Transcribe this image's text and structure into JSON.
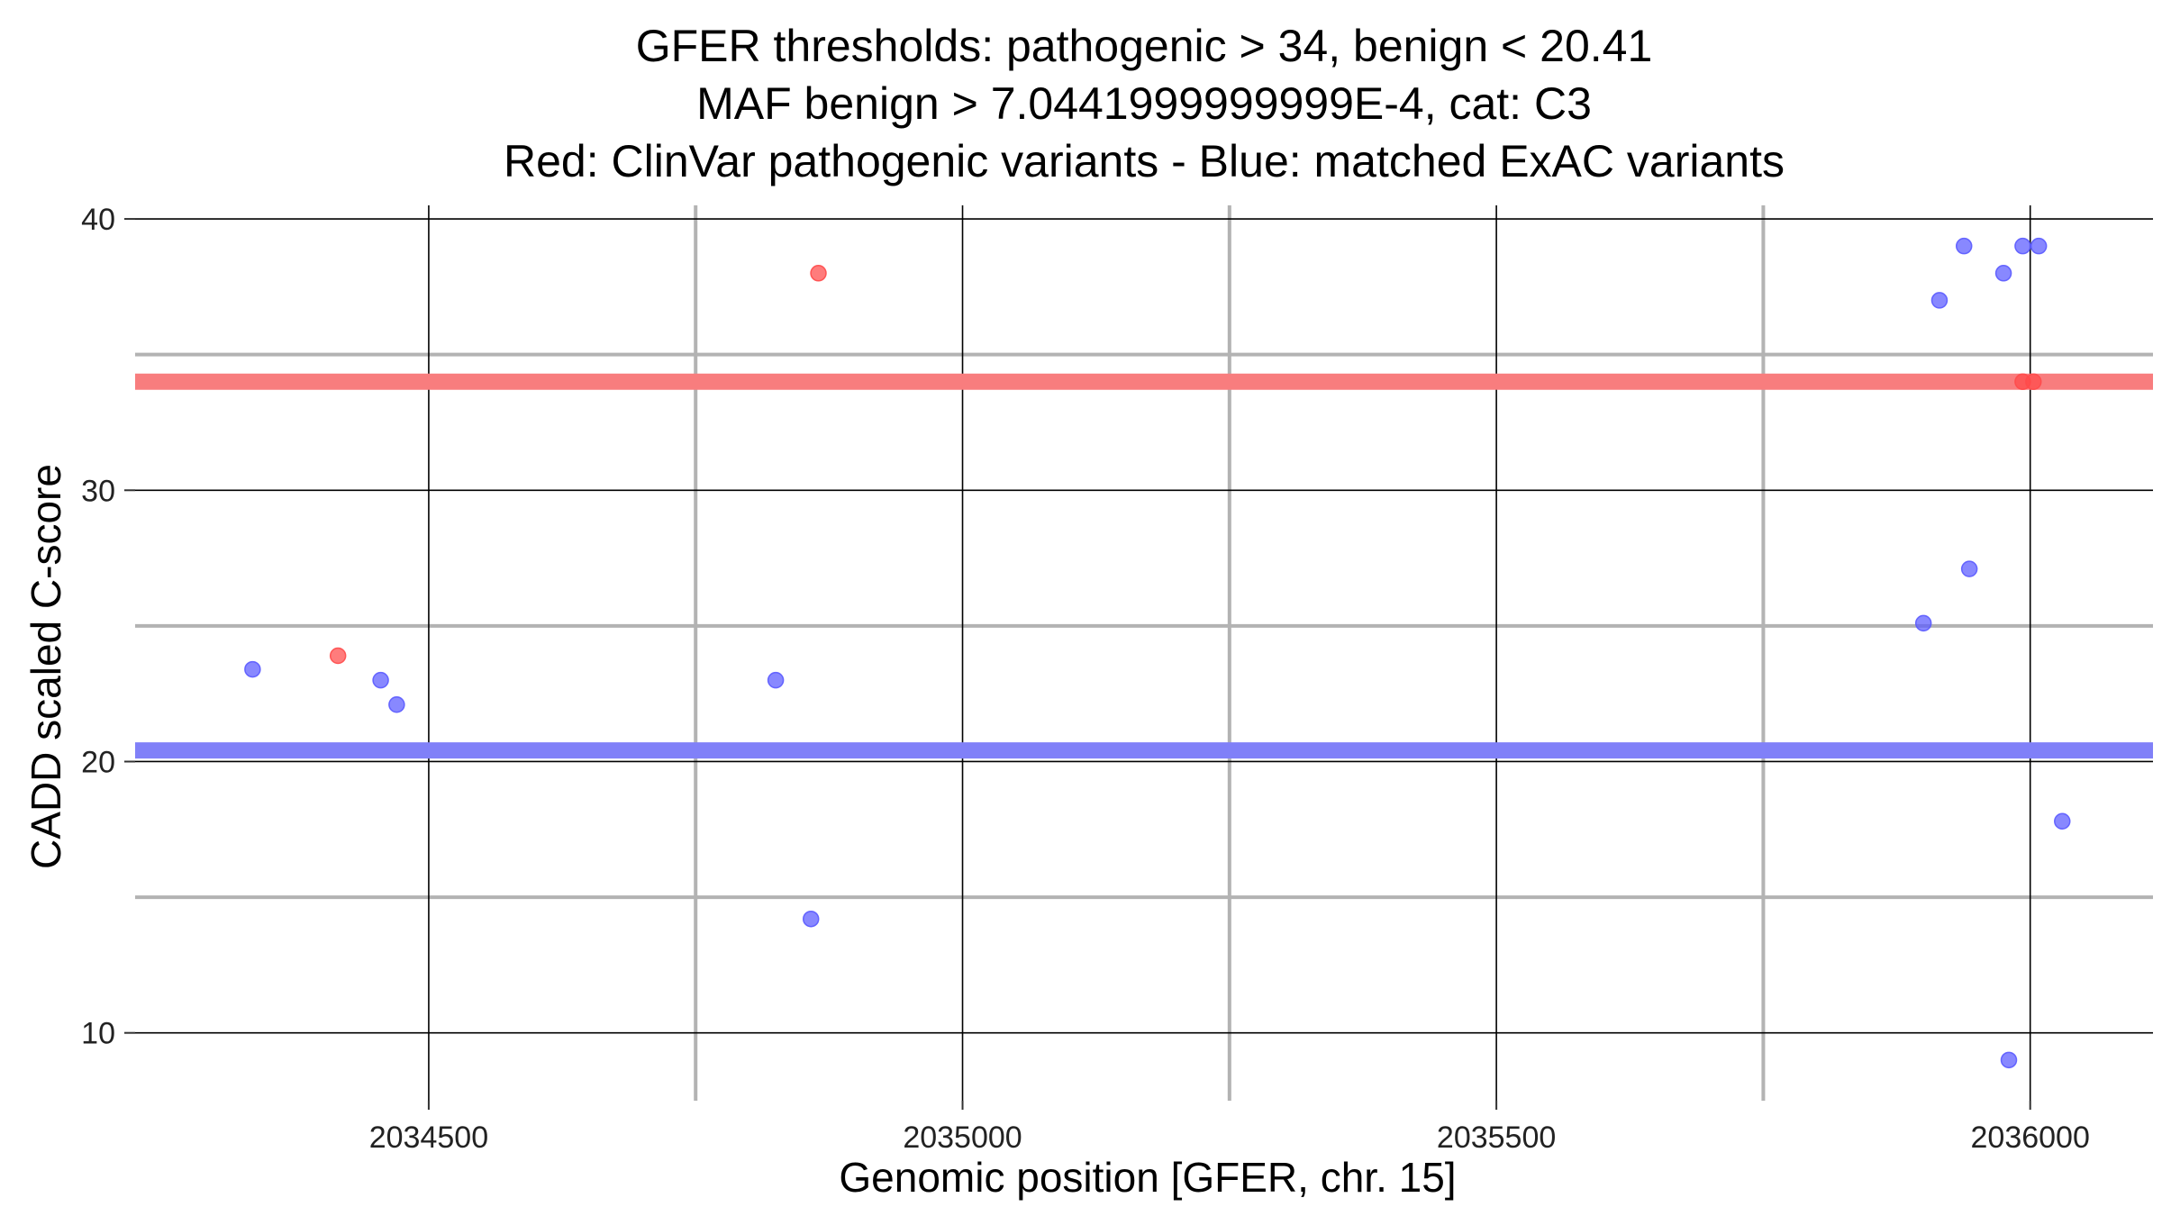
{
  "chart_data": {
    "type": "scatter",
    "title_lines": [
      "GFER thresholds: pathogenic > 34, benign < 20.41",
      "MAF benign > 7.0441999999999E-4, cat: C3",
      "Red: ClinVar pathogenic variants - Blue: matched ExAC variants"
    ],
    "xlabel": "Genomic position [GFER, chr. 15]",
    "ylabel": "CADD scaled C-score",
    "xlim": [
      2034225,
      2036115
    ],
    "ylim": [
      7.5,
      40.5
    ],
    "x_ticks": [
      2034500,
      2035000,
      2035500,
      2036000
    ],
    "x_tick_labels": [
      "2034500",
      "2035000",
      "2035500",
      "2036000"
    ],
    "x_minor_lines": [
      2034750,
      2035250,
      2035750
    ],
    "y_ticks": [
      10,
      20,
      30,
      40
    ],
    "y_tick_labels": [
      "10",
      "20",
      "30",
      "40"
    ],
    "y_minor_lines": [
      15,
      25,
      35
    ],
    "thresholds": [
      {
        "name": "pathogenic",
        "y": 34,
        "color": "#f87d7e"
      },
      {
        "name": "benign",
        "y": 20.41,
        "color": "#8080f8"
      }
    ],
    "series": [
      {
        "name": "ClinVar pathogenic variants",
        "color": "#ff4a4a",
        "points": [
          {
            "x": 2034415,
            "y": 23.9
          },
          {
            "x": 2034865,
            "y": 38.0
          },
          {
            "x": 2035993,
            "y": 34.0
          },
          {
            "x": 2036003,
            "y": 34.0
          }
        ]
      },
      {
        "name": "matched ExAC variants",
        "color": "#5a5aff",
        "points": [
          {
            "x": 2034335,
            "y": 23.4
          },
          {
            "x": 2034455,
            "y": 23.0
          },
          {
            "x": 2034470,
            "y": 22.1
          },
          {
            "x": 2034825,
            "y": 23.0
          },
          {
            "x": 2034858,
            "y": 14.2
          },
          {
            "x": 2035900,
            "y": 25.1
          },
          {
            "x": 2035915,
            "y": 37.0
          },
          {
            "x": 2035938,
            "y": 39.0
          },
          {
            "x": 2035943,
            "y": 27.1
          },
          {
            "x": 2035975,
            "y": 38.0
          },
          {
            "x": 2035980,
            "y": 9.0
          },
          {
            "x": 2035993,
            "y": 39.0
          },
          {
            "x": 2036008,
            "y": 39.0
          },
          {
            "x": 2036030,
            "y": 17.8
          }
        ]
      }
    ]
  }
}
